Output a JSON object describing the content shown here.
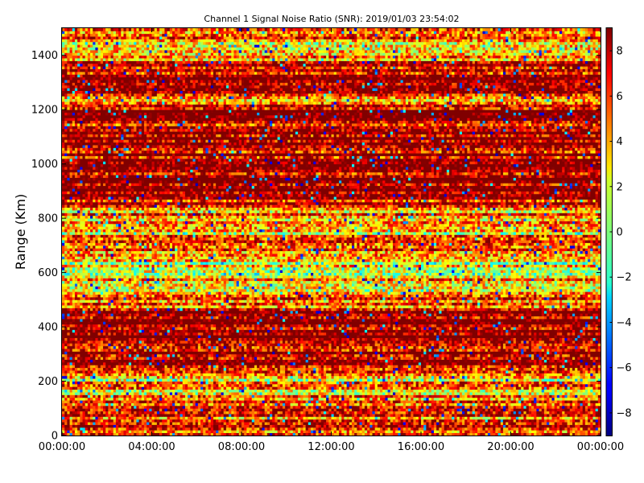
{
  "chart_data": {
    "type": "heatmap",
    "title": "Channel 1 Signal Noise Ratio (SNR): 2019/01/03 23:54:02",
    "xlabel": "",
    "ylabel": "Range (Km)",
    "x_ticks": [
      "00:00:00",
      "04:00:00",
      "08:00:00",
      "12:00:00",
      "16:00:00",
      "20:00:00",
      "00:00:00"
    ],
    "x_range_hours": [
      0,
      24
    ],
    "y_ticks": [
      0,
      200,
      400,
      600,
      800,
      1000,
      1200,
      1400
    ],
    "ylim": [
      0,
      1500
    ],
    "colorbar": {
      "ticks": [
        -8,
        -6,
        -4,
        -2,
        0,
        2,
        4,
        6,
        8
      ],
      "vmin": -9,
      "vmax": 9,
      "colormap": "jet"
    },
    "grid": false,
    "range_bands": [
      {
        "from": 0,
        "to": 150,
        "level": 5.5
      },
      {
        "from": 150,
        "to": 230,
        "level": 3.5
      },
      {
        "from": 230,
        "to": 300,
        "level": 7.5
      },
      {
        "from": 300,
        "to": 360,
        "level": 8.5
      },
      {
        "from": 360,
        "to": 460,
        "level": 8.5
      },
      {
        "from": 460,
        "to": 520,
        "level": 6
      },
      {
        "from": 520,
        "to": 640,
        "level": 3
      },
      {
        "from": 640,
        "to": 740,
        "level": 5
      },
      {
        "from": 740,
        "to": 850,
        "level": 4
      },
      {
        "from": 850,
        "to": 1000,
        "level": 8.5
      },
      {
        "from": 1000,
        "to": 1200,
        "level": 8.5
      },
      {
        "from": 1200,
        "to": 1260,
        "level": 6
      },
      {
        "from": 1260,
        "to": 1380,
        "level": 8
      },
      {
        "from": 1380,
        "to": 1500,
        "level": 4
      }
    ]
  }
}
